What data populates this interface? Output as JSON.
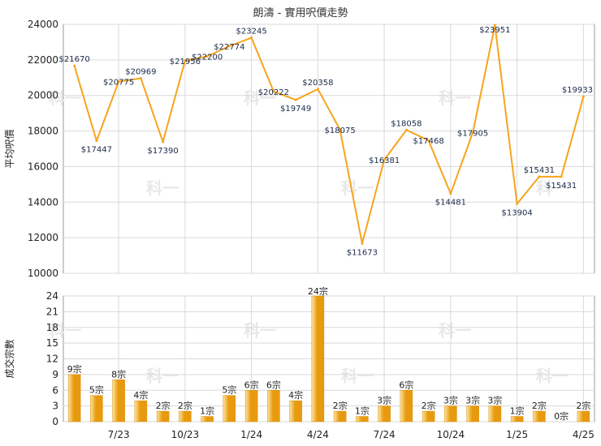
{
  "title": "朗濤 - 實用呎價走勢",
  "watermark": "科一",
  "colors": {
    "line": "#f7a41d",
    "bar_light": "#fde6a0",
    "bar_dark": "#e79a0e",
    "grid": "#d9d9d9",
    "axis": "#999999"
  },
  "chart_data": [
    {
      "type": "line",
      "ylabel": "平均呎價",
      "ylim": [
        10000,
        24000
      ],
      "yticks": [
        "10000",
        "12000",
        "14000",
        "16000",
        "18000",
        "20000",
        "22000",
        "24000"
      ],
      "grid": true,
      "x_tick_labels": [
        "7/23",
        "10/23",
        "1/24",
        "4/24",
        "7/24",
        "10/24",
        "1/25",
        "4/25"
      ],
      "values": [
        21670,
        17447,
        20775,
        20969,
        17390,
        21956,
        22200,
        22774,
        23245,
        20222,
        19749,
        20358,
        18075,
        11673,
        16381,
        18058,
        17468,
        14481,
        17905,
        23951,
        13904,
        15431,
        15431,
        19933
      ],
      "labels": [
        "$21670",
        "$17447",
        "$20775",
        "$20969",
        "$17390",
        "$21956",
        "$22200",
        "$22774",
        "$23245",
        "$20222",
        "$19749",
        "$20358",
        "$18075",
        "$11673",
        "$16381",
        "$18058",
        "$17468",
        "$14481",
        "$17905",
        "$23951",
        "$13904",
        "$15431",
        "$15431",
        "$19933"
      ]
    },
    {
      "type": "bar",
      "ylabel": "成交宗數",
      "ylim": [
        0,
        24
      ],
      "yticks": [
        "0",
        "3",
        "6",
        "9",
        "12",
        "15",
        "18",
        "21",
        "24"
      ],
      "grid": true,
      "x_tick_labels": [
        "7/23",
        "10/23",
        "1/24",
        "4/24",
        "7/24",
        "10/24",
        "1/25",
        "4/25"
      ],
      "values": [
        9,
        5,
        8,
        4,
        2,
        2,
        1,
        5,
        6,
        6,
        4,
        24,
        2,
        1,
        3,
        6,
        2,
        3,
        3,
        3,
        1,
        2,
        0,
        2
      ],
      "labels": [
        "9宗",
        "5宗",
        "8宗",
        "4宗",
        "2宗",
        "2宗",
        "1宗",
        "5宗",
        "6宗",
        "6宗",
        "4宗",
        "24宗",
        "2宗",
        "1宗",
        "3宗",
        "6宗",
        "2宗",
        "3宗",
        "3宗",
        "3宗",
        "1宗",
        "2宗",
        "0宗",
        "2宗"
      ]
    }
  ]
}
